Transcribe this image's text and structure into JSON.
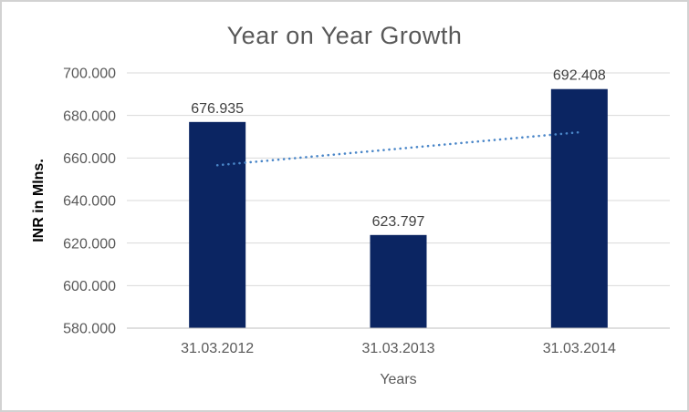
{
  "window": {
    "background_color": "#ffffff",
    "border_color": "#d2d2d2"
  },
  "chart_data": {
    "type": "bar",
    "title": "Year on Year Growth",
    "xlabel": "Years",
    "ylabel": "INR in Mlns.",
    "categories": [
      "31.03.2012",
      "31.03.2013",
      "31.03.2014"
    ],
    "series": [
      {
        "name": "INR in Mlns.",
        "values": [
          676.935,
          623.797,
          692.408
        ],
        "value_labels": [
          "676.935",
          "623.797",
          "692.408"
        ]
      }
    ],
    "ylim": [
      580,
      700
    ],
    "ytick_step": 20,
    "yticks": [
      {
        "value": 700,
        "label": "700.000"
      },
      {
        "value": 680,
        "label": "680.000"
      },
      {
        "value": 660,
        "label": "660.000"
      },
      {
        "value": 640,
        "label": "640.000"
      },
      {
        "value": 620,
        "label": "620.000"
      },
      {
        "value": 600,
        "label": "600.000"
      },
      {
        "value": 580,
        "label": "580.000"
      }
    ],
    "grid": true,
    "legend_position": "none",
    "trendline": {
      "type": "linear",
      "style": "dotted",
      "start_value": 656.6,
      "end_value": 672.1
    },
    "colors": {
      "bar": "#0b2562",
      "trendline": "#4a86c8",
      "gridline": "#d9d9d9",
      "axis_line": "#bfbfbf",
      "tick_text": "#595959",
      "category_text": "#595959",
      "data_label_text": "#404040",
      "title_text": "#595959"
    }
  }
}
